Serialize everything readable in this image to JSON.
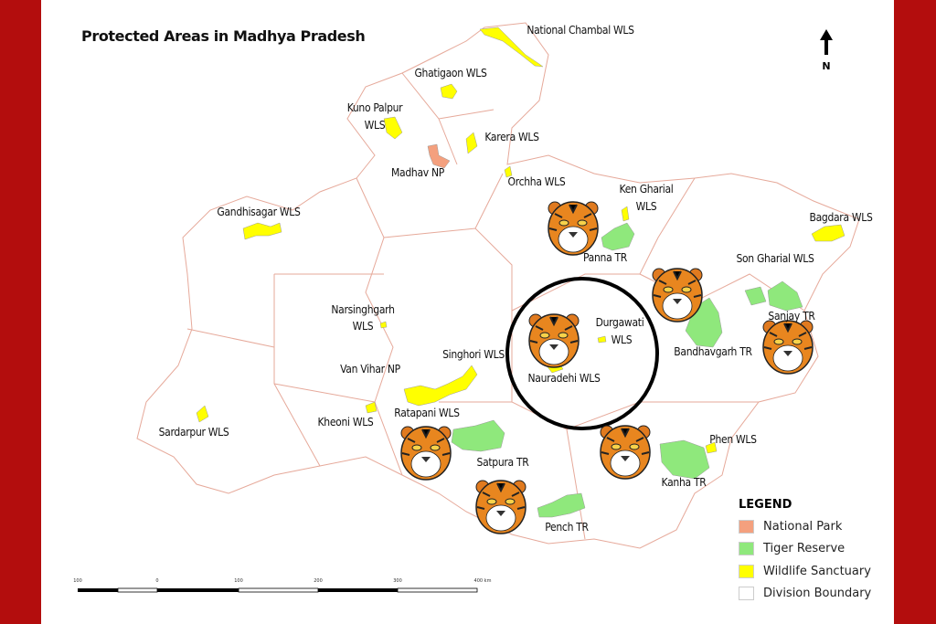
{
  "title": "Protected Areas in Madhya Pradesh",
  "north_label": "N",
  "colors": {
    "national_park": "#f4a07e",
    "tiger_reserve": "#8fe87c",
    "wildlife_sanctuary": "#ffff00",
    "division_boundary": "#ffffff",
    "frame": "#b30d0d",
    "boundary_line": "#e6a99a"
  },
  "labels": {
    "chambal": "National Chambal WLS",
    "ghatigaon": "Ghatigaon WLS",
    "kuno1": "Kuno Palpur",
    "kuno2": "WLS",
    "karera": "Karera WLS",
    "madhav": "Madhav NP",
    "orchha": "Orchha WLS",
    "ken1": "Ken Gharial",
    "ken2": "WLS",
    "gandhisagar": "Gandhisagar WLS",
    "bagdara": "Bagdara WLS",
    "panna": "Panna TR",
    "songharial": "Son Gharial WLS",
    "sanjay": "Sanjay TR",
    "nars1": "Narsinghgarh",
    "nars2": "WLS",
    "durg1": "Durgawati",
    "durg2": "WLS",
    "bandhavgarh": "Bandhavgarh TR",
    "singhori": "Singhori WLS",
    "vanvihar": "Van Vihar NP",
    "nauradehi": "Nauradehi WLS",
    "ratapani": "Ratapani WLS",
    "kheoni": "Kheoni WLS",
    "sardarpur": "Sardarpur WLS",
    "phen": "Phen WLS",
    "satpura": "Satpura TR",
    "kanha": "Kanha TR",
    "pench": "Pench TR"
  },
  "legend": {
    "heading": "LEGEND",
    "items": [
      "National Park",
      "Tiger Reserve",
      "Wildlife Sanctuary",
      "Division Boundary"
    ]
  },
  "scale_bar": {
    "ticks": [
      "100",
      "0",
      "100",
      "200",
      "300",
      "400 km"
    ]
  },
  "icons": {
    "tiger": "tiger-face-icon",
    "north": "north-arrow-icon"
  }
}
